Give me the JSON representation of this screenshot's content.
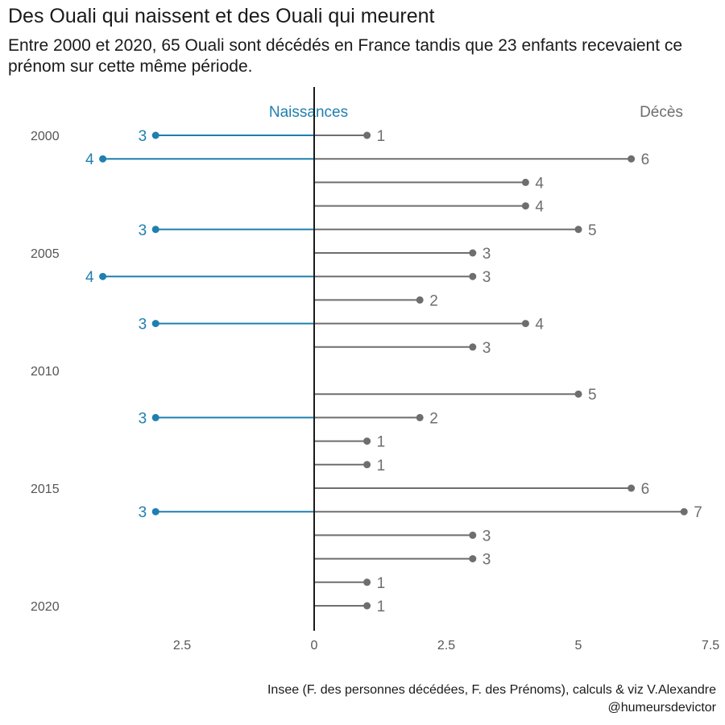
{
  "title": "Des Ouali qui naissent et des Ouali qui meurent",
  "subtitle": "Entre 2000 et 2020, 65 Ouali sont décédés en France tandis que 23 enfants recevaient ce prénom sur cette même période.",
  "caption": "Insee (F. des personnes décédées, F. des Prénoms), calculs & viz V.Alexandre @humeursdevictor",
  "colors": {
    "births": "#1f7fb0",
    "deaths": "#6e6e6e",
    "axis": "#1a1a1a",
    "year_label": "#555555",
    "tick_label": "#555555"
  },
  "chart_data": {
    "type": "bar",
    "orientation": "horizontal lollipop (diverging)",
    "years": [
      2000,
      2001,
      2002,
      2003,
      2004,
      2005,
      2006,
      2007,
      2008,
      2009,
      2010,
      2011,
      2012,
      2013,
      2014,
      2015,
      2016,
      2017,
      2018,
      2019,
      2020
    ],
    "year_tick_labels": [
      "2000",
      "2005",
      "2010",
      "2015",
      "2020"
    ],
    "series": [
      {
        "name": "Naissances",
        "side": "left",
        "values": [
          3,
          4,
          null,
          null,
          3,
          null,
          4,
          null,
          3,
          null,
          null,
          null,
          3,
          null,
          null,
          null,
          3,
          null,
          null,
          null,
          null
        ]
      },
      {
        "name": "Décès",
        "side": "right",
        "values": [
          1,
          6,
          4,
          4,
          5,
          3,
          3,
          2,
          4,
          3,
          null,
          5,
          2,
          1,
          1,
          6,
          7,
          3,
          3,
          1,
          1
        ]
      }
    ],
    "x_tick_labels": [
      "2.5",
      "0",
      "2.5",
      "5",
      "7.5"
    ],
    "xlim": [
      -4.3,
      7.5
    ],
    "grid": false,
    "legend": "series names printed above each side"
  }
}
